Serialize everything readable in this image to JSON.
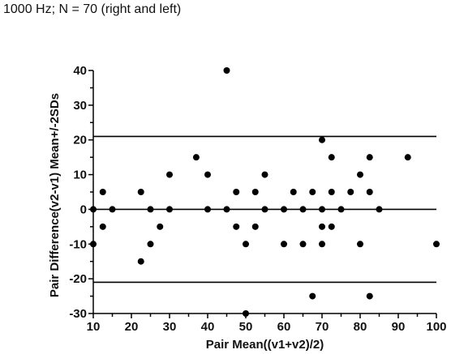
{
  "title": "1000 Hz; N = 70 (right and left)",
  "chart_data": {
    "type": "scatter",
    "title": "1000 Hz; N = 70 (right and left)",
    "xlabel": "Pair Mean((v1+v2)/2)",
    "ylabel": "Pair Difference(v2-v1) Mean+/-2SDs",
    "xlim": [
      10,
      100
    ],
    "ylim": [
      -30,
      40
    ],
    "xticks": [
      10,
      20,
      30,
      40,
      50,
      60,
      70,
      80,
      90,
      100
    ],
    "yticks": [
      40,
      30,
      20,
      10,
      0,
      -10,
      -20,
      -30
    ],
    "reference_lines": [
      21,
      0,
      -21
    ],
    "grid": false,
    "legend": "none",
    "colors": {
      "points": "#000000",
      "lines": "#000000",
      "axis": "#000000"
    },
    "points": [
      [
        45,
        40
      ],
      [
        70,
        20
      ],
      [
        37,
        15
      ],
      [
        72.5,
        15
      ],
      [
        82.5,
        15
      ],
      [
        92.5,
        15
      ],
      [
        30,
        10
      ],
      [
        40,
        10
      ],
      [
        55,
        10
      ],
      [
        80,
        10
      ],
      [
        12.5,
        5
      ],
      [
        22.5,
        5
      ],
      [
        47.5,
        5
      ],
      [
        52.5,
        5
      ],
      [
        62.5,
        5
      ],
      [
        67.5,
        5
      ],
      [
        72.5,
        5
      ],
      [
        77.5,
        5
      ],
      [
        82.5,
        5
      ],
      [
        10,
        0
      ],
      [
        15,
        0
      ],
      [
        25,
        0
      ],
      [
        30,
        0
      ],
      [
        40,
        0
      ],
      [
        45,
        0
      ],
      [
        55,
        0
      ],
      [
        60,
        0
      ],
      [
        65,
        0
      ],
      [
        70,
        0
      ],
      [
        75,
        0
      ],
      [
        85,
        0
      ],
      [
        12.5,
        -5
      ],
      [
        27.5,
        -5
      ],
      [
        47.5,
        -5
      ],
      [
        52.5,
        -5
      ],
      [
        70,
        -5
      ],
      [
        72.5,
        -5
      ],
      [
        10,
        -10
      ],
      [
        25,
        -10
      ],
      [
        50,
        -10
      ],
      [
        60,
        -10
      ],
      [
        65,
        -10
      ],
      [
        70,
        -10
      ],
      [
        80,
        -10
      ],
      [
        100,
        -10
      ],
      [
        22.5,
        -15
      ],
      [
        67.5,
        -25
      ],
      [
        82.5,
        -25
      ],
      [
        50,
        -30
      ]
    ]
  }
}
